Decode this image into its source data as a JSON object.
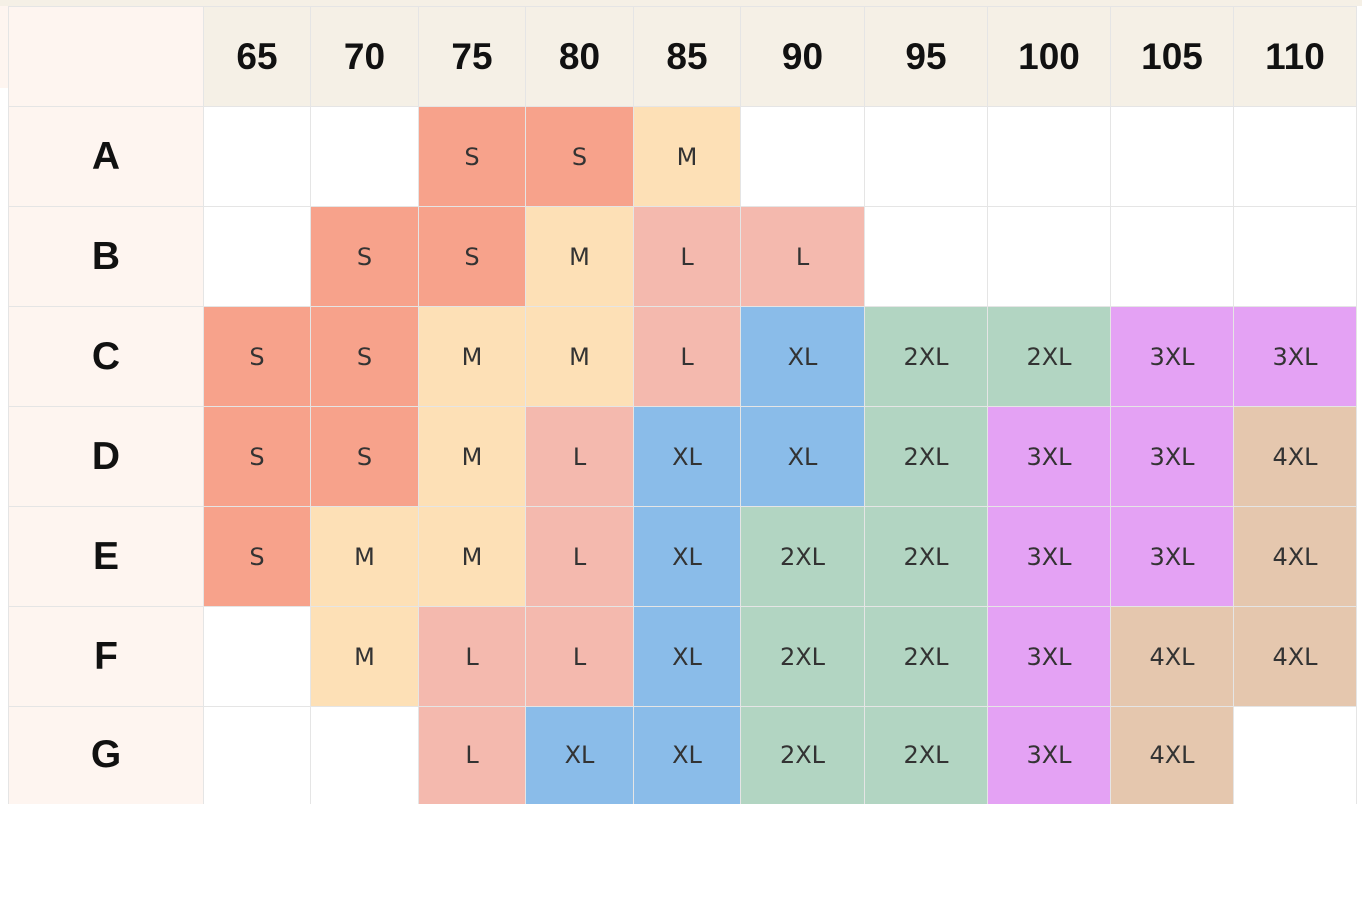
{
  "colors": {
    "S": "#f7a28b",
    "M": "#fde0b6",
    "L": "#f4b9ae",
    "XL": "#8abce9",
    "2XL": "#b2d5c2",
    "3XL": "#e4a2f4",
    "4XL": "#e5c7ae",
    "empty": "#ffffff"
  },
  "columns": [
    "65",
    "70",
    "75",
    "80",
    "85",
    "90",
    "95",
    "100",
    "105",
    "110"
  ],
  "rows": [
    {
      "label": "A",
      "cells": [
        "",
        "",
        "S",
        "S",
        "M",
        "",
        "",
        "",
        "",
        ""
      ]
    },
    {
      "label": "B",
      "cells": [
        "",
        "S",
        "S",
        "M",
        "L",
        "L",
        "",
        "",
        "",
        ""
      ]
    },
    {
      "label": "C",
      "cells": [
        "S",
        "S",
        "M",
        "M",
        "L",
        "XL",
        "2XL",
        "2XL",
        "3XL",
        "3XL"
      ]
    },
    {
      "label": "D",
      "cells": [
        "S",
        "S",
        "M",
        "L",
        "XL",
        "XL",
        "2XL",
        "3XL",
        "3XL",
        "4XL"
      ]
    },
    {
      "label": "E",
      "cells": [
        "S",
        "M",
        "M",
        "L",
        "XL",
        "2XL",
        "2XL",
        "3XL",
        "3XL",
        "4XL"
      ]
    },
    {
      "label": "F",
      "cells": [
        "",
        "M",
        "L",
        "L",
        "XL",
        "2XL",
        "2XL",
        "3XL",
        "4XL",
        "4XL"
      ]
    },
    {
      "label": "G",
      "cells": [
        "",
        "",
        "L",
        "XL",
        "XL",
        "2XL",
        "2XL",
        "3XL",
        "4XL",
        ""
      ]
    }
  ]
}
